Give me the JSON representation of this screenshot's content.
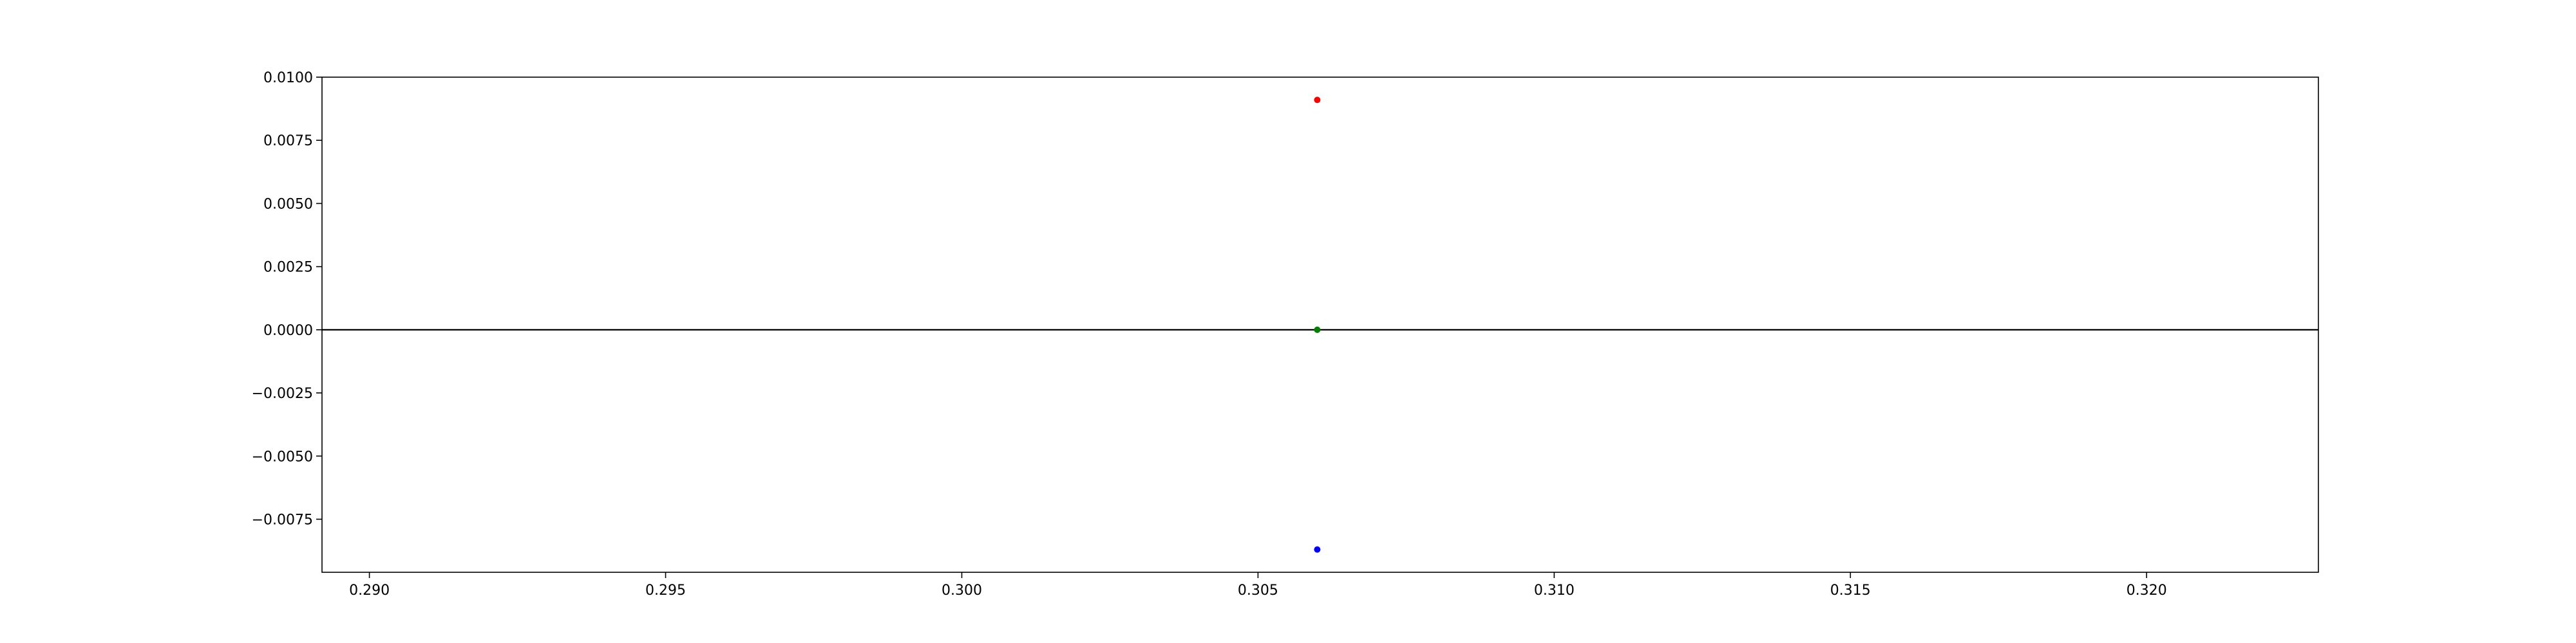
{
  "chart_data": {
    "type": "scatter",
    "title": "",
    "xlabel": "",
    "ylabel": "",
    "xlim": [
      0.2892,
      0.3229
    ],
    "ylim": [
      -0.0096,
      0.01
    ],
    "grid": false,
    "legend": "none",
    "x_ticks": [
      0.29,
      0.295,
      0.3,
      0.305,
      0.31,
      0.315,
      0.32
    ],
    "x_tick_labels": [
      "0.290",
      "0.295",
      "0.300",
      "0.305",
      "0.310",
      "0.315",
      "0.320"
    ],
    "y_ticks": [
      0.01,
      0.0075,
      0.005,
      0.0025,
      0.0,
      -0.0025,
      -0.005,
      -0.0075
    ],
    "y_tick_labels": [
      "0.0100",
      "0.0075",
      "0.0050",
      "0.0025",
      "0.0000",
      "−0.0025",
      "−0.0050",
      "−0.0075"
    ],
    "hline": {
      "y": 0,
      "color": "#000000"
    },
    "points": [
      {
        "x": 0.306,
        "y": 0.0091,
        "color": "#ff0000"
      },
      {
        "x": 0.306,
        "y": 0.0,
        "color": "#008000"
      },
      {
        "x": 0.306,
        "y": -0.0087,
        "color": "#0000ff"
      }
    ]
  }
}
